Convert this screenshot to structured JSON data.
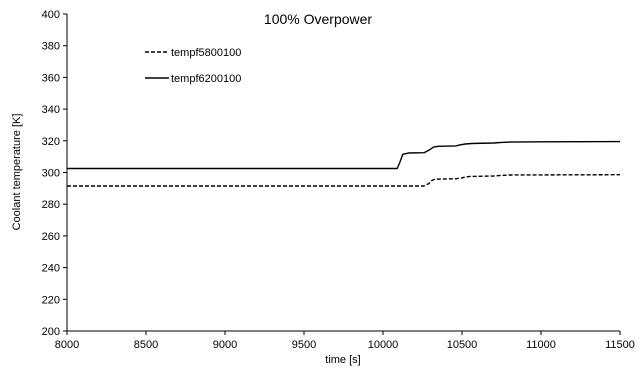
{
  "chart_data": {
    "type": "line",
    "title": "100% Overpower",
    "xlabel": "time [s]",
    "ylabel": "Coolant temperature  [K]",
    "xlim": [
      8000,
      11500
    ],
    "ylim": [
      200,
      400
    ],
    "xticks": [
      8000,
      8500,
      9000,
      9500,
      10000,
      10500,
      11000,
      11500
    ],
    "yticks": [
      200,
      220,
      240,
      260,
      280,
      300,
      320,
      340,
      360,
      380,
      400
    ],
    "grid": false,
    "legend_position": "upper-left",
    "series": [
      {
        "name": "tempf5800100",
        "style": "dashed",
        "color": "#000000",
        "x": [
          8000,
          10260,
          10290,
          10310,
          10330,
          10460,
          10500,
          10520,
          10550,
          10700,
          10750,
          10800,
          11000,
          11500
        ],
        "y": [
          291.5,
          291.5,
          293.0,
          295.0,
          295.8,
          296.0,
          296.6,
          297.2,
          297.5,
          297.8,
          298.2,
          298.4,
          298.5,
          298.6
        ]
      },
      {
        "name": "tempf6200100",
        "style": "solid",
        "color": "#000000",
        "x": [
          8000,
          10090,
          10105,
          10125,
          10160,
          10260,
          10290,
          10320,
          10350,
          10460,
          10490,
          10520,
          10560,
          10700,
          10750,
          10800,
          11000,
          11500
        ],
        "y": [
          302.5,
          302.5,
          306.0,
          311.5,
          312.3,
          312.5,
          314.0,
          316.0,
          316.5,
          316.8,
          317.5,
          318.0,
          318.3,
          318.6,
          319.0,
          319.2,
          319.4,
          319.5
        ]
      }
    ]
  }
}
